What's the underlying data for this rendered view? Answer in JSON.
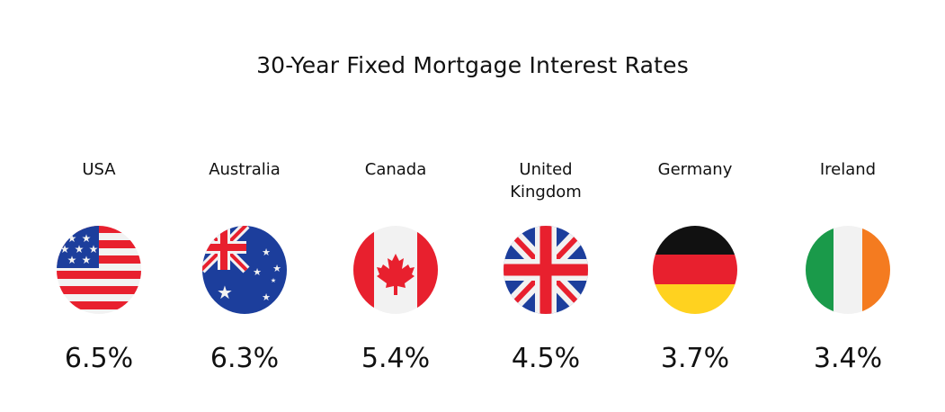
{
  "chart_data": {
    "type": "table",
    "title": "30-Year Fixed Mortgage Interest Rates",
    "categories": [
      "USA",
      "Australia",
      "Canada",
      "United Kingdom",
      "Germany",
      "Ireland"
    ],
    "values": [
      6.5,
      6.3,
      5.4,
      4.5,
      3.7,
      3.4
    ],
    "value_labels": [
      "6.5%",
      "6.3%",
      "5.4%",
      "4.5%",
      "3.7%",
      "3.4%"
    ],
    "flag_icons": [
      "usa-flag-icon",
      "australia-flag-icon",
      "canada-flag-icon",
      "uk-flag-icon",
      "germany-flag-icon",
      "ireland-flag-icon"
    ]
  },
  "colors": {
    "red": "#e8202e",
    "blue": "#1c3e9c",
    "white": "#f2f2f2",
    "black": "#111111",
    "gold": "#ffd21f",
    "green": "#1a9a4a",
    "orange": "#f47b20"
  }
}
